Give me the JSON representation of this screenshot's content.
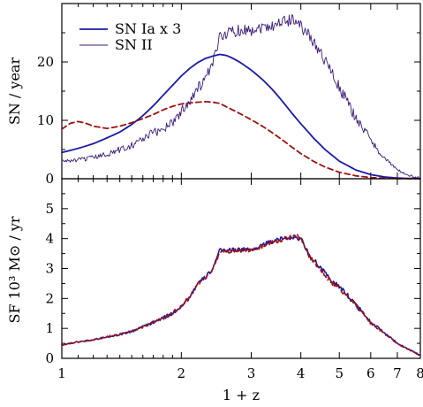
{
  "colors": {
    "blue": "#1a1aa8",
    "red": "#a01010",
    "axis": "#000000"
  },
  "chart_data": [
    {
      "type": "line",
      "panel": "top",
      "xscale": "log",
      "xlim": [
        1,
        8
      ],
      "ylim": [
        0,
        30
      ],
      "xlabel": "",
      "ylabel": "SN / year",
      "yticks": [
        0,
        10,
        20
      ],
      "legend": {
        "placement": "top-left",
        "entries": [
          "SN Ia x 3",
          "SN II"
        ]
      },
      "series": [
        {
          "name": "SN Ia x 3",
          "color": "#1a1aa8",
          "style": "solid",
          "width": 1.8,
          "x": [
            1.0,
            1.1,
            1.2,
            1.3,
            1.4,
            1.5,
            1.6,
            1.7,
            1.8,
            1.9,
            2.0,
            2.1,
            2.2,
            2.3,
            2.4,
            2.5,
            2.6,
            2.7,
            2.8,
            3.0,
            3.2,
            3.4,
            3.6,
            3.8,
            4.0,
            4.3,
            4.6,
            5.0,
            5.5,
            6.0,
            6.5,
            7.0,
            7.5,
            8.0
          ],
          "y": [
            4.5,
            5.2,
            6.0,
            7.0,
            8.0,
            9.3,
            10.8,
            12.5,
            14.3,
            16.0,
            17.6,
            18.9,
            19.9,
            20.6,
            21.0,
            21.3,
            21.1,
            20.6,
            20.0,
            18.6,
            17.0,
            15.2,
            13.2,
            11.2,
            9.4,
            7.0,
            5.0,
            3.0,
            1.5,
            0.7,
            0.3,
            0.12,
            0.05,
            0.02
          ]
        },
        {
          "name": "",
          "color": "#a01010",
          "style": "dashed",
          "width": 1.8,
          "x": [
            1.0,
            1.05,
            1.1,
            1.15,
            1.2,
            1.3,
            1.4,
            1.5,
            1.6,
            1.7,
            1.8,
            1.9,
            2.0,
            2.1,
            2.2,
            2.3,
            2.4,
            2.5,
            2.6,
            2.8,
            3.0,
            3.2,
            3.4,
            3.6,
            3.8,
            4.0,
            4.3,
            4.6,
            5.0,
            5.5,
            6.0,
            6.5,
            7.0,
            7.5,
            8.0
          ],
          "y": [
            8.5,
            9.5,
            9.8,
            9.5,
            9.0,
            8.6,
            9.0,
            9.6,
            10.3,
            11.0,
            11.8,
            12.4,
            12.8,
            13.0,
            13.1,
            13.2,
            13.1,
            12.9,
            12.3,
            11.2,
            10.1,
            9.0,
            7.8,
            6.6,
            5.4,
            4.3,
            3.0,
            2.0,
            1.1,
            0.5,
            0.2,
            0.08,
            0.03,
            0.01,
            0.0
          ]
        },
        {
          "name": "SN II",
          "color": "#3a1a78",
          "style": "solid",
          "width": 0.9,
          "noisy": true,
          "x": [
            1.0,
            1.1,
            1.2,
            1.3,
            1.4,
            1.5,
            1.6,
            1.7,
            1.8,
            1.9,
            2.0,
            2.1,
            2.2,
            2.3,
            2.4,
            2.5,
            2.6,
            2.8,
            3.0,
            3.2,
            3.4,
            3.6,
            3.8,
            3.9,
            4.0,
            4.2,
            4.5,
            4.8,
            5.0,
            5.5,
            6.0,
            6.5,
            7.0,
            7.5,
            8.0
          ],
          "y": [
            3.0,
            3.2,
            3.6,
            4.2,
            5.0,
            5.8,
            6.8,
            7.8,
            8.6,
            9.8,
            11.5,
            13.5,
            15.5,
            17.0,
            19.5,
            24.5,
            25.0,
            25.5,
            25.5,
            26.0,
            26.3,
            27.0,
            27.2,
            27.5,
            26.0,
            24.5,
            21.5,
            18.0,
            15.5,
            10.5,
            6.5,
            3.5,
            1.5,
            0.5,
            0.1
          ]
        }
      ]
    },
    {
      "type": "line",
      "panel": "bottom",
      "xscale": "log",
      "xlim": [
        1,
        8
      ],
      "ylim": [
        0,
        6
      ],
      "xlabel": "1 + z",
      "ylabel": "SF 10³ M⊙ / yr",
      "xticks": [
        1,
        2,
        3,
        4,
        5,
        6,
        7,
        8
      ],
      "yticks": [
        0,
        1,
        2,
        3,
        4,
        5
      ],
      "series": [
        {
          "name": "",
          "color": "#1a1aa8",
          "style": "solid",
          "width": 1.6,
          "noisy": true,
          "x": [
            1.0,
            1.1,
            1.2,
            1.3,
            1.4,
            1.5,
            1.6,
            1.7,
            1.8,
            1.9,
            2.0,
            2.1,
            2.2,
            2.3,
            2.4,
            2.5,
            2.7,
            2.9,
            3.0,
            3.2,
            3.4,
            3.6,
            3.8,
            3.9,
            4.0,
            4.2,
            4.5,
            4.8,
            5.0,
            5.5,
            6.0,
            6.5,
            7.0,
            7.5,
            8.0
          ],
          "y": [
            0.45,
            0.55,
            0.62,
            0.72,
            0.8,
            0.9,
            1.05,
            1.2,
            1.35,
            1.5,
            1.75,
            2.05,
            2.5,
            2.7,
            3.0,
            3.6,
            3.62,
            3.65,
            3.6,
            3.8,
            3.9,
            4.0,
            4.05,
            4.02,
            4.0,
            3.45,
            3.0,
            2.55,
            2.4,
            1.8,
            1.2,
            0.85,
            0.5,
            0.3,
            0.1
          ]
        },
        {
          "name": "",
          "color": "#a01010",
          "style": "dashed",
          "width": 1.6,
          "noisy": true,
          "x": [
            1.0,
            1.1,
            1.2,
            1.3,
            1.4,
            1.5,
            1.6,
            1.7,
            1.8,
            1.9,
            2.0,
            2.1,
            2.2,
            2.3,
            2.4,
            2.5,
            2.7,
            2.9,
            3.0,
            3.2,
            3.4,
            3.6,
            3.8,
            3.9,
            4.0,
            4.2,
            4.5,
            4.8,
            5.0,
            5.5,
            6.0,
            6.5,
            7.0,
            7.5,
            8.0
          ],
          "y": [
            0.45,
            0.55,
            0.62,
            0.72,
            0.8,
            0.9,
            1.05,
            1.2,
            1.35,
            1.5,
            1.75,
            2.05,
            2.5,
            2.7,
            3.0,
            3.55,
            3.6,
            3.62,
            3.58,
            3.75,
            3.88,
            3.98,
            4.08,
            4.1,
            4.0,
            3.4,
            2.95,
            2.5,
            2.35,
            1.78,
            1.18,
            0.82,
            0.48,
            0.28,
            0.08
          ]
        }
      ]
    }
  ]
}
